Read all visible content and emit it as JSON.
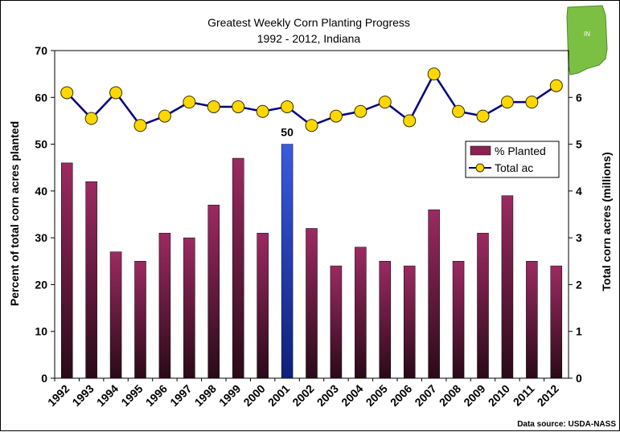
{
  "chart_data": {
    "type": "bar+line",
    "title": "Greatest Weekly Corn Planting Progress",
    "subtitle": "1992 - 2012, Indiana",
    "ylabel": "Percent of total corn acres planted",
    "y2label": "Total corn acres (millions)",
    "ylim": [
      0,
      70
    ],
    "y2lim": [
      0,
      7
    ],
    "yticks": [
      0,
      10,
      20,
      30,
      40,
      50,
      60,
      70
    ],
    "y2ticks": [
      0,
      1,
      2,
      3,
      4,
      5,
      6
    ],
    "categories": [
      "1992",
      "1993",
      "1994",
      "1995",
      "1996",
      "1997",
      "1998",
      "1999",
      "2000",
      "2001",
      "2002",
      "2003",
      "2004",
      "2005",
      "2006",
      "2007",
      "2008",
      "2009",
      "2010",
      "2011",
      "2012"
    ],
    "series": [
      {
        "name": "% Planted",
        "type": "bar",
        "axis": "left",
        "color": "#8B2252",
        "highlight_color": "#3355DD",
        "values": [
          46,
          42,
          27,
          25,
          31,
          30,
          37,
          47,
          31,
          50,
          32,
          24,
          28,
          25,
          24,
          36,
          25,
          31,
          39,
          25,
          24
        ]
      },
      {
        "name": "Total ac",
        "type": "line",
        "axis": "right",
        "line_color": "#000080",
        "marker_color": "#FFD700",
        "values": [
          6.1,
          5.55,
          6.1,
          5.4,
          5.6,
          5.9,
          5.8,
          5.8,
          5.7,
          5.8,
          5.4,
          5.6,
          5.7,
          5.9,
          5.5,
          6.5,
          5.7,
          5.6,
          5.9,
          5.9,
          6.25
        ]
      }
    ],
    "highlight_index": 9,
    "annotations": [
      {
        "category": "2001",
        "text": "50"
      }
    ],
    "legend": {
      "position": "right",
      "entries": [
        "% Planted",
        "Total ac"
      ]
    },
    "source_note": "Data source: USDA-NASS",
    "logo_text": "IN",
    "grid": false
  }
}
